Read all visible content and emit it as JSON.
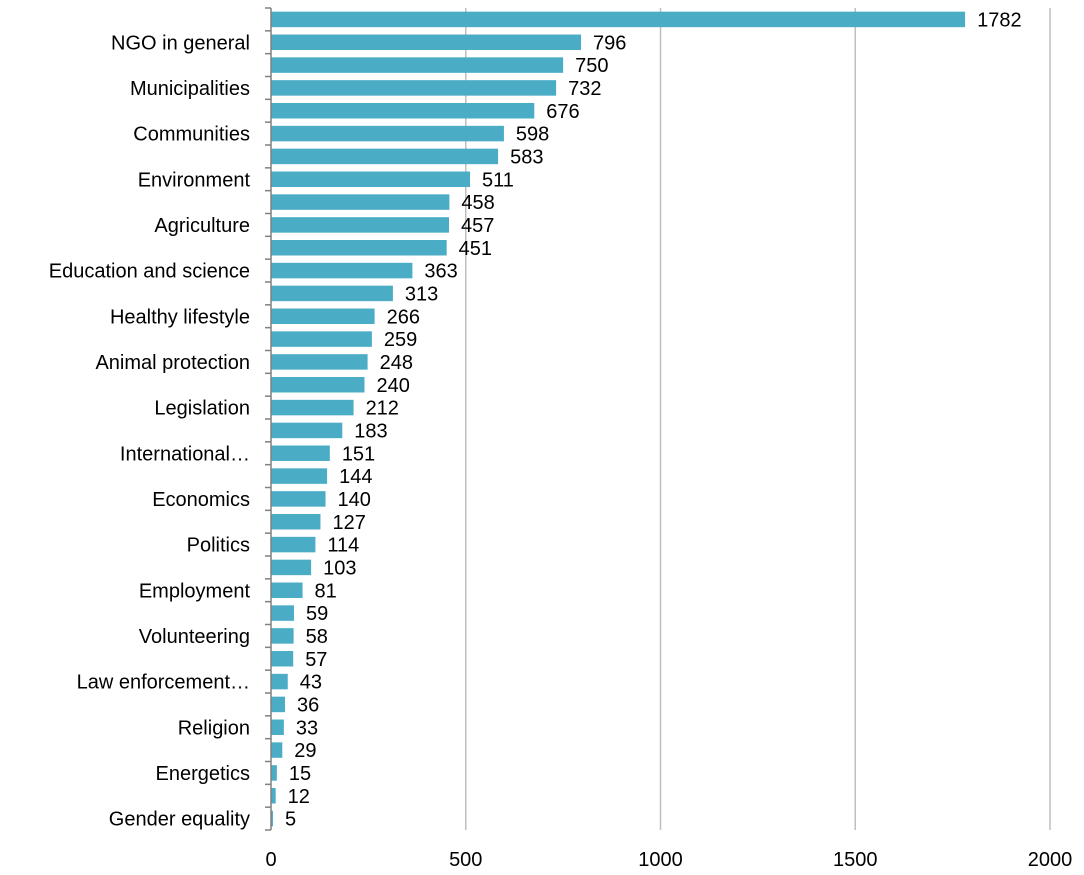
{
  "chart_data": {
    "type": "bar",
    "orientation": "horizontal",
    "title": "",
    "xlabel": "",
    "ylabel": "",
    "xlim": [
      0,
      2000
    ],
    "x_ticks": [
      0,
      500,
      1000,
      1500,
      2000
    ],
    "grid": "vertical",
    "legend": "none",
    "colors": {
      "bar": "#4bacc6",
      "grid": "#bfbfbf",
      "axis": "#808080"
    },
    "categories": [
      "",
      "NGO in general",
      "",
      "Municipalities",
      "",
      "Communities",
      "",
      "Environment",
      "",
      "Agriculture",
      "",
      "Education and science",
      "",
      "Healthy lifestyle",
      "",
      "Animal protection",
      "",
      "Legislation",
      "",
      "International…",
      "",
      "Economics",
      "",
      "Politics",
      "",
      "Employment",
      "",
      "Volunteering",
      "",
      "Law enforcement…",
      "",
      "Religion",
      "",
      "Energetics",
      "",
      "Gender equality"
    ],
    "values": [
      1782,
      796,
      750,
      732,
      676,
      598,
      583,
      511,
      458,
      457,
      451,
      363,
      313,
      266,
      259,
      248,
      240,
      212,
      183,
      151,
      144,
      140,
      127,
      114,
      103,
      81,
      59,
      58,
      57,
      43,
      36,
      33,
      29,
      15,
      12,
      5
    ],
    "value_labels": [
      "1782",
      "796",
      "750",
      "732",
      "676",
      "598",
      "583",
      "511",
      "458",
      "457",
      "451",
      "363",
      "313",
      "266",
      "259",
      "248",
      "240",
      "212",
      "183",
      "151",
      "144",
      "140",
      "127",
      "114",
      "103",
      "81",
      "59",
      "58",
      "57",
      "43",
      "36",
      "33",
      "29",
      "15",
      "12",
      "5"
    ],
    "tick_labels": [
      "0",
      "500",
      "1000",
      "1500",
      "2000"
    ]
  }
}
